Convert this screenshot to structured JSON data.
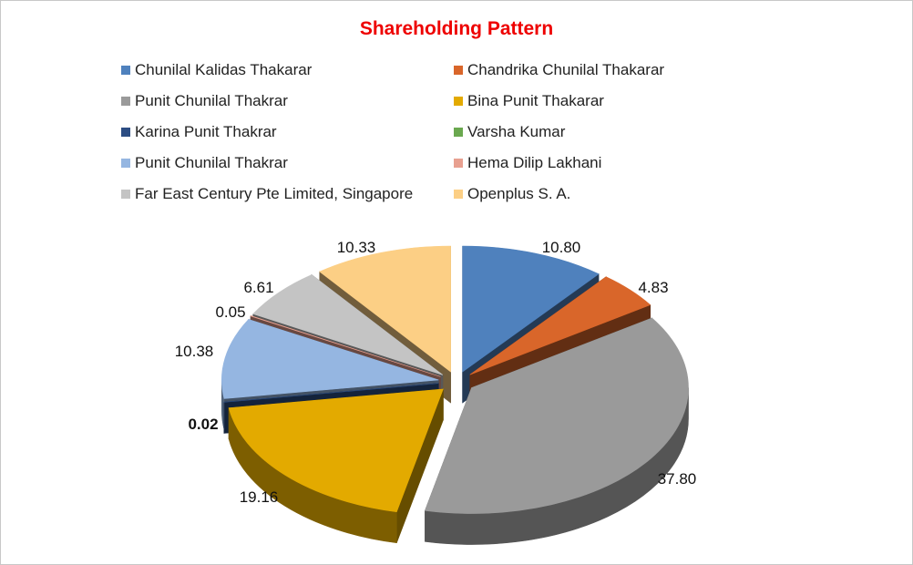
{
  "chart_data": {
    "type": "pie",
    "title": "Shareholding Pattern",
    "legend_position": "top",
    "three_d": true,
    "exploded": true,
    "slices": [
      {
        "name": "Chunilal Kalidas Thakarar",
        "value": 10.8,
        "label": "10.80",
        "color": "#4f81bd"
      },
      {
        "name": "Chandrika Chunilal Thakarar",
        "value": 4.83,
        "label": "4.83",
        "color": "#d9662a"
      },
      {
        "name": "Punit Chunilal Thakrar",
        "value": 37.8,
        "label": "37.80",
        "color": "#9a9a9a"
      },
      {
        "name": "Bina Punit Thakarar",
        "value": 19.16,
        "label": "19.16",
        "color": "#e3aa00"
      },
      {
        "name": "Karina Punit Thakrar",
        "value": 0.02,
        "label": "0.02",
        "color": "#2c4d83"
      },
      {
        "name": "Varsha Kumar",
        "value": 0.0,
        "label": "",
        "color": "#6aa84f"
      },
      {
        "name": "Punit Chunilal Thakrar",
        "value": 10.38,
        "label": "10.38",
        "color": "#95b6e1"
      },
      {
        "name": "Hema Dilip Lakhani",
        "value": 0.05,
        "label": "0.05",
        "color": "#e8a090"
      },
      {
        "name": "Far East Century Pte Limited, Singapore",
        "value": 6.61,
        "label": "6.61",
        "color": "#c4c4c4"
      },
      {
        "name": "Openplus S. A.",
        "value": 10.33,
        "label": "10.33",
        "color": "#fccf85"
      }
    ]
  }
}
